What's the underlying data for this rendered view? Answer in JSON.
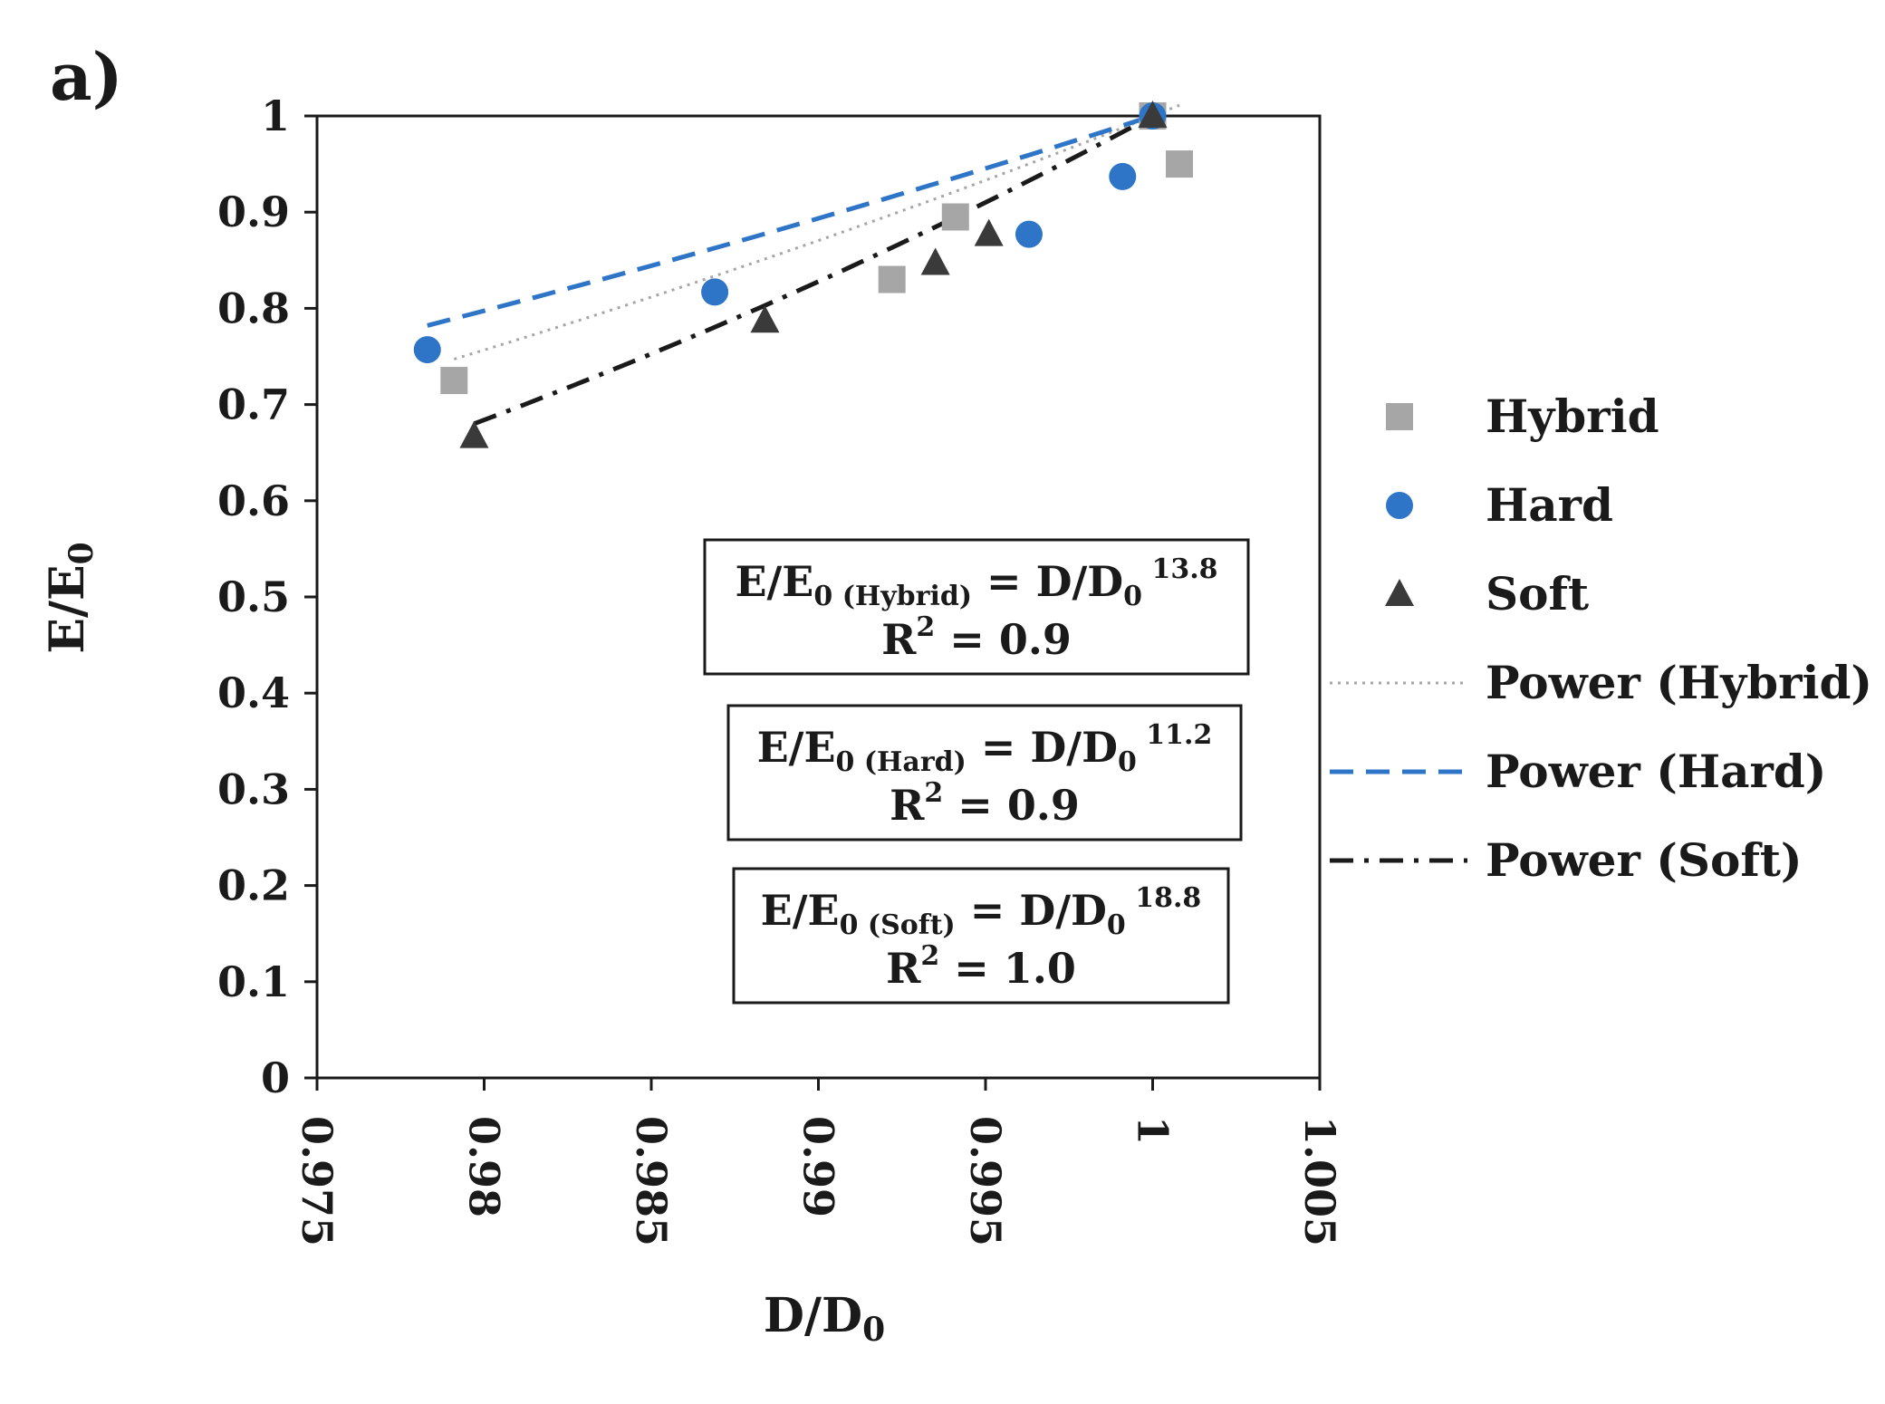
{
  "chart_data": {
    "type": "scatter",
    "panel_label": "a)",
    "xlabel": {
      "main": "D/D",
      "sub": "0"
    },
    "ylabel": {
      "main": "E/E",
      "sub": "0"
    },
    "xlim": [
      0.975,
      1.005
    ],
    "ylim": [
      0,
      1
    ],
    "x_ticks": [
      "0.975",
      "0.98",
      "0.985",
      "0.99",
      "0.995",
      "1",
      "1.005"
    ],
    "y_ticks": [
      "0",
      "0.1",
      "0.2",
      "0.3",
      "0.4",
      "0.5",
      "0.6",
      "0.7",
      "0.8",
      "0.9",
      "1"
    ],
    "grid": false,
    "legend_position": "right",
    "series": [
      {
        "name": "Hybrid",
        "marker": "square",
        "color": "#a6a6a6",
        "x": [
          0.9791,
          0.9922,
          0.9941,
          1.0,
          1.0008
        ],
        "y": [
          0.725,
          0.83,
          0.895,
          1.0,
          0.95
        ]
      },
      {
        "name": "Hard",
        "marker": "circle",
        "color": "#2e75c8",
        "x": [
          0.9783,
          0.9869,
          0.9963,
          0.9991,
          1.0
        ],
        "y": [
          0.757,
          0.817,
          0.877,
          0.937,
          1.0
        ]
      },
      {
        "name": "Soft",
        "marker": "triangle",
        "color": "#3a3a3a",
        "x": [
          0.9797,
          0.9884,
          0.9935,
          0.9951,
          1.0
        ],
        "y": [
          0.667,
          0.787,
          0.847,
          0.877,
          1.0
        ]
      }
    ],
    "trendlines": [
      {
        "name": "Power (Hybrid)",
        "style": "dotted",
        "color": "#a6a6a6",
        "exponent": 13.8
      },
      {
        "name": "Power (Hard)",
        "style": "dashed",
        "color": "#2e75c8",
        "exponent": 11.2
      },
      {
        "name": "Power (Soft)",
        "style": "dash-dot",
        "color": "#1a1a1a",
        "exponent": 18.8
      }
    ],
    "annotations": [
      {
        "lhs": "E/E",
        "lhs_sub": "0 (Hybrid)",
        "rhs": " = D/D",
        "rhs_sub": "0",
        "exponent": "13.8",
        "r2_label": "R",
        "r2_exp": "2",
        "r2_value": " = 0.9"
      },
      {
        "lhs": "E/E",
        "lhs_sub": "0 (Hard)",
        "rhs": " = D/D",
        "rhs_sub": "0",
        "exponent": "11.2",
        "r2_label": "R",
        "r2_exp": "2",
        "r2_value": " = 0.9"
      },
      {
        "lhs": "E/E",
        "lhs_sub": "0 (Soft)",
        "rhs": " = D/D",
        "rhs_sub": "0",
        "exponent": "18.8",
        "r2_label": "R",
        "r2_exp": "2",
        "r2_value": " = 1.0"
      }
    ]
  }
}
